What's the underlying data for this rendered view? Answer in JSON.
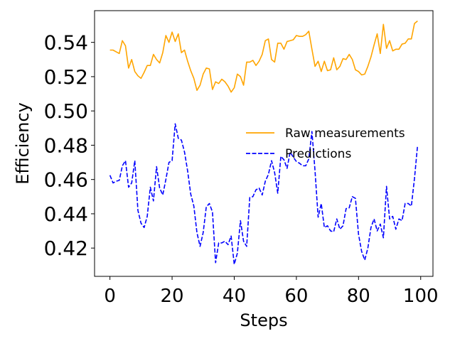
{
  "chart_data": {
    "type": "line",
    "title": "",
    "xlabel": "Steps",
    "ylabel": "Efficiency",
    "xlim": [
      -4.95,
      103.95
    ],
    "ylim": [
      0.4035,
      0.5585
    ],
    "xticks": [
      0,
      20,
      40,
      60,
      80,
      100
    ],
    "yticks": [
      0.42,
      0.44,
      0.46,
      0.48,
      0.5,
      0.52,
      0.54
    ],
    "xtick_labels": [
      "0",
      "20",
      "40",
      "60",
      "80",
      "100"
    ],
    "ytick_labels": [
      "0.42",
      "0.44",
      "0.46",
      "0.48",
      "0.50",
      "0.52",
      "0.54"
    ],
    "grid": false,
    "legend_position": "center-right",
    "x": [
      0,
      1,
      2,
      3,
      4,
      5,
      6,
      7,
      8,
      9,
      10,
      11,
      12,
      13,
      14,
      15,
      16,
      17,
      18,
      19,
      20,
      21,
      22,
      23,
      24,
      25,
      26,
      27,
      28,
      29,
      30,
      31,
      32,
      33,
      34,
      35,
      36,
      37,
      38,
      39,
      40,
      41,
      42,
      43,
      44,
      45,
      46,
      47,
      48,
      49,
      50,
      51,
      52,
      53,
      54,
      55,
      56,
      57,
      58,
      59,
      60,
      61,
      62,
      63,
      64,
      65,
      66,
      67,
      68,
      69,
      70,
      71,
      72,
      73,
      74,
      75,
      76,
      77,
      78,
      79,
      80,
      81,
      82,
      83,
      84,
      85,
      86,
      87,
      88,
      89,
      90,
      91,
      92,
      93,
      94,
      95,
      96,
      97,
      98,
      99
    ],
    "series": [
      {
        "name": "Raw measurements",
        "color": "#ffa500",
        "style": "solid",
        "values": [
          0.5355,
          0.5355,
          0.5345,
          0.5335,
          0.541,
          0.538,
          0.525,
          0.53,
          0.523,
          0.5205,
          0.519,
          0.5225,
          0.5265,
          0.5265,
          0.533,
          0.53,
          0.528,
          0.534,
          0.544,
          0.54,
          0.546,
          0.5405,
          0.545,
          0.534,
          0.5355,
          0.529,
          0.5235,
          0.519,
          0.512,
          0.515,
          0.5215,
          0.525,
          0.5245,
          0.5125,
          0.517,
          0.516,
          0.5185,
          0.517,
          0.5145,
          0.511,
          0.5135,
          0.5215,
          0.52,
          0.515,
          0.5285,
          0.5285,
          0.5295,
          0.5265,
          0.529,
          0.533,
          0.541,
          0.542,
          0.53,
          0.5285,
          0.5395,
          0.5395,
          0.536,
          0.5405,
          0.541,
          0.5415,
          0.544,
          0.5435,
          0.5435,
          0.5445,
          0.5465,
          0.536,
          0.526,
          0.529,
          0.523,
          0.529,
          0.5235,
          0.524,
          0.531,
          0.524,
          0.526,
          0.5305,
          0.53,
          0.533,
          0.53,
          0.524,
          0.523,
          0.521,
          0.5215,
          0.526,
          0.5315,
          0.5385,
          0.545,
          0.5335,
          0.5505,
          0.5365,
          0.541,
          0.535,
          0.536,
          0.536,
          0.539,
          0.5395,
          0.542,
          0.542,
          0.551,
          0.5525
        ]
      },
      {
        "name": "Predictions",
        "color": "#0000ff",
        "style": "dashed",
        "values": [
          0.4625,
          0.458,
          0.459,
          0.4595,
          0.468,
          0.471,
          0.4555,
          0.458,
          0.471,
          0.442,
          0.4345,
          0.432,
          0.4385,
          0.4555,
          0.4475,
          0.4675,
          0.455,
          0.451,
          0.46,
          0.47,
          0.471,
          0.4925,
          0.484,
          0.483,
          0.476,
          0.465,
          0.4515,
          0.4445,
          0.429,
          0.421,
          0.429,
          0.444,
          0.446,
          0.441,
          0.4115,
          0.423,
          0.423,
          0.424,
          0.422,
          0.427,
          0.4105,
          0.417,
          0.436,
          0.424,
          0.421,
          0.4495,
          0.45,
          0.454,
          0.455,
          0.451,
          0.459,
          0.463,
          0.471,
          0.464,
          0.452,
          0.4735,
          0.4715,
          0.4665,
          0.476,
          0.473,
          0.4705,
          0.4695,
          0.468,
          0.468,
          0.472,
          0.488,
          0.465,
          0.438,
          0.446,
          0.432,
          0.433,
          0.43,
          0.4295,
          0.437,
          0.431,
          0.433,
          0.443,
          0.4435,
          0.45,
          0.449,
          0.428,
          0.418,
          0.413,
          0.42,
          0.432,
          0.437,
          0.43,
          0.434,
          0.426,
          0.456,
          0.437,
          0.4385,
          0.431,
          0.437,
          0.436,
          0.446,
          0.446,
          0.4445,
          0.4605,
          0.48
        ]
      }
    ]
  }
}
